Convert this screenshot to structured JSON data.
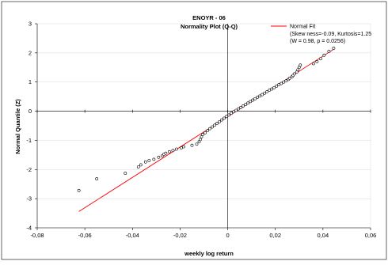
{
  "chart_data": {
    "type": "scatter",
    "title": "ENOYR - 06",
    "subtitle": "Normality Plot (Q-Q)",
    "xlabel": "weekly log return",
    "ylabel": "Normal Quantile (Z)",
    "xlim": [
      -0.08,
      0.06
    ],
    "ylim": [
      -4,
      3
    ],
    "xticks": [
      -0.08,
      -0.06,
      -0.04,
      -0.02,
      0,
      0.02,
      0.04,
      0.06
    ],
    "xtick_labels": [
      "-0,08",
      "-0,06",
      "-0,04",
      "-0,02",
      "0",
      "0,02",
      "0,04",
      "0,06"
    ],
    "yticks": [
      -4,
      -3,
      -2,
      -1,
      0,
      1,
      2,
      3
    ],
    "ytick_labels": [
      "-4",
      "-3",
      "-2",
      "-1",
      "0",
      "1",
      "2",
      "3"
    ],
    "grid": false,
    "legend_position": "top-right",
    "legend": {
      "label": "Normal Fit",
      "stats_line1": "(Skew ness=-0.09, Kurtosis=1.25",
      "stats_line2": "(W = 0.98, p = 0.0256)"
    },
    "fit_line": {
      "x": [
        -0.0625,
        0.045
      ],
      "y": [
        -3.44,
        2.15
      ],
      "color": "#ff0000"
    },
    "points": {
      "x": [
        -0.0625,
        -0.055,
        -0.043,
        -0.0375,
        -0.0365,
        -0.0345,
        -0.033,
        -0.031,
        -0.029,
        -0.0275,
        -0.0268,
        -0.026,
        -0.0245,
        -0.023,
        -0.0215,
        -0.0195,
        -0.0185,
        -0.015,
        -0.013,
        -0.012,
        -0.0115,
        -0.011,
        -0.0105,
        -0.0095,
        -0.0085,
        -0.0075,
        -0.0065,
        -0.0055,
        -0.0045,
        -0.0035,
        -0.0025,
        -0.0015,
        -0.0005,
        0.0005,
        0.0015,
        0.0025,
        0.0035,
        0.0045,
        0.0055,
        0.0065,
        0.0075,
        0.0085,
        0.0095,
        0.0105,
        0.0115,
        0.0125,
        0.0135,
        0.0145,
        0.0155,
        0.0165,
        0.0175,
        0.0185,
        0.0195,
        0.0205,
        0.0215,
        0.0225,
        0.0235,
        0.0245,
        0.0255,
        0.026,
        0.027,
        0.0275,
        0.028,
        0.029,
        0.0295,
        0.03,
        0.0305,
        0.036,
        0.0375,
        0.039,
        0.0405,
        0.0425,
        0.0445
      ],
      "y": [
        -2.72,
        -2.32,
        -2.13,
        -1.91,
        -1.84,
        -1.74,
        -1.69,
        -1.65,
        -1.58,
        -1.53,
        -1.48,
        -1.44,
        -1.39,
        -1.35,
        -1.3,
        -1.26,
        -1.22,
        -1.17,
        -1.13,
        -1.05,
        -0.97,
        -0.88,
        -0.8,
        -0.74,
        -0.67,
        -0.6,
        -0.54,
        -0.48,
        -0.42,
        -0.36,
        -0.3,
        -0.24,
        -0.18,
        -0.13,
        -0.07,
        -0.02,
        0.03,
        0.08,
        0.13,
        0.18,
        0.23,
        0.28,
        0.33,
        0.38,
        0.43,
        0.48,
        0.52,
        0.57,
        0.62,
        0.67,
        0.72,
        0.76,
        0.81,
        0.86,
        0.91,
        0.95,
        1.0,
        1.04,
        1.09,
        1.13,
        1.18,
        1.23,
        1.28,
        1.34,
        1.42,
        1.5,
        1.58,
        1.63,
        1.7,
        1.8,
        1.92,
        2.05,
        2.16
      ]
    }
  }
}
